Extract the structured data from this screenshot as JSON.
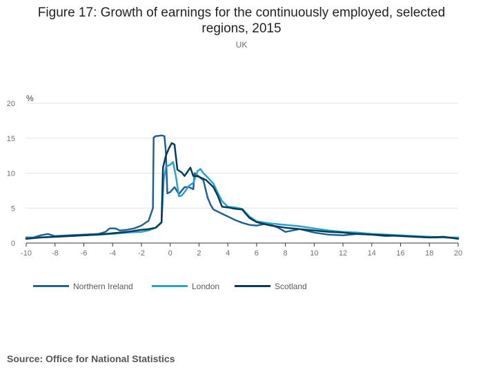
{
  "title_lines": [
    "Figure 17: Growth of earnings for the continuously employed, selected",
    "regions, 2015"
  ],
  "subtitle": "UK",
  "source": "Source: Office for National Statistics",
  "chart_data": {
    "type": "line",
    "title": "Figure 17: Growth of earnings for the continuously employed, selected regions, 2015",
    "subtitle": "UK",
    "xlabel": "",
    "ylabel": "%",
    "xlim": [
      -10,
      20
    ],
    "ylim": [
      0,
      20
    ],
    "x_ticks": [
      -10,
      -8,
      -6,
      -4,
      -2,
      0,
      2,
      4,
      6,
      8,
      10,
      12,
      14,
      16,
      18,
      20
    ],
    "y_ticks": [
      0,
      5,
      10,
      15,
      20
    ],
    "grid": true,
    "legend_position": "bottom-left",
    "series": [
      {
        "name": "Northern Ireland",
        "color": "#206095",
        "points": [
          [
            -10,
            0.8
          ],
          [
            -9.5,
            0.8
          ],
          [
            -9,
            1.1
          ],
          [
            -8.5,
            1.3
          ],
          [
            -8,
            1.0
          ],
          [
            -7,
            1.1
          ],
          [
            -6,
            1.2
          ],
          [
            -5,
            1.3
          ],
          [
            -4.5,
            1.6
          ],
          [
            -4.2,
            2.1
          ],
          [
            -3.8,
            2.1
          ],
          [
            -3.5,
            1.8
          ],
          [
            -3,
            1.9
          ],
          [
            -2.5,
            2.1
          ],
          [
            -2,
            2.5
          ],
          [
            -1.5,
            3.2
          ],
          [
            -1.2,
            5.0
          ],
          [
            -1.15,
            15.1
          ],
          [
            -1,
            15.3
          ],
          [
            -0.6,
            15.4
          ],
          [
            -0.4,
            15.3
          ],
          [
            -0.3,
            13.0
          ],
          [
            -0.2,
            7.1
          ],
          [
            0,
            7.3
          ],
          [
            0.3,
            8.0
          ],
          [
            0.6,
            7.0
          ],
          [
            1,
            8.0
          ],
          [
            1.3,
            8.0
          ],
          [
            1.6,
            7.7
          ],
          [
            1.7,
            10.0
          ],
          [
            2,
            9.5
          ],
          [
            2.3,
            9.0
          ],
          [
            2.6,
            6.5
          ],
          [
            2.8,
            5.5
          ],
          [
            3,
            4.8
          ],
          [
            3.5,
            4.3
          ],
          [
            4,
            3.8
          ],
          [
            4.5,
            3.3
          ],
          [
            5,
            2.9
          ],
          [
            5.5,
            2.6
          ],
          [
            6,
            2.5
          ],
          [
            6.5,
            2.7
          ],
          [
            7,
            2.6
          ],
          [
            7.5,
            2.2
          ],
          [
            8,
            1.6
          ],
          [
            9,
            2.0
          ],
          [
            10,
            1.5
          ],
          [
            11,
            1.2
          ],
          [
            12,
            1.1
          ],
          [
            13,
            1.3
          ],
          [
            14,
            1.2
          ],
          [
            15,
            1.0
          ],
          [
            16,
            1.1
          ],
          [
            17,
            0.9
          ],
          [
            18,
            0.8
          ],
          [
            19,
            0.8
          ],
          [
            20,
            0.7
          ]
        ]
      },
      {
        "name": "London",
        "color": "#27A0CC",
        "points": [
          [
            -10,
            0.7
          ],
          [
            -9,
            0.8
          ],
          [
            -8,
            0.9
          ],
          [
            -7,
            1.0
          ],
          [
            -6,
            1.1
          ],
          [
            -5,
            1.2
          ],
          [
            -4,
            1.3
          ],
          [
            -3,
            1.5
          ],
          [
            -2,
            1.6
          ],
          [
            -1.5,
            1.8
          ],
          [
            -1,
            2.2
          ],
          [
            -0.6,
            2.9
          ],
          [
            -0.45,
            9.0
          ],
          [
            -0.3,
            10.9
          ],
          [
            0,
            11.2
          ],
          [
            0.2,
            11.6
          ],
          [
            0.4,
            9.5
          ],
          [
            0.6,
            6.7
          ],
          [
            0.8,
            6.8
          ],
          [
            1,
            7.3
          ],
          [
            1.3,
            8.2
          ],
          [
            1.6,
            8.6
          ],
          [
            1.9,
            10.3
          ],
          [
            2.1,
            10.6
          ],
          [
            2.3,
            10.0
          ],
          [
            2.6,
            9.4
          ],
          [
            3,
            8.5
          ],
          [
            3.3,
            7.2
          ],
          [
            3.6,
            6.0
          ],
          [
            4,
            5.2
          ],
          [
            4.5,
            5.1
          ],
          [
            5,
            4.9
          ],
          [
            5.5,
            3.8
          ],
          [
            6,
            3.1
          ],
          [
            7,
            2.8
          ],
          [
            8,
            2.6
          ],
          [
            9,
            2.4
          ],
          [
            10,
            2.1
          ],
          [
            11,
            1.8
          ],
          [
            12,
            1.6
          ],
          [
            13,
            1.5
          ],
          [
            14,
            1.3
          ],
          [
            15,
            1.2
          ],
          [
            16,
            1.1
          ],
          [
            17,
            1.0
          ],
          [
            18,
            0.9
          ],
          [
            19,
            0.8
          ],
          [
            20,
            0.8
          ]
        ]
      },
      {
        "name": "Scotland",
        "color": "#003C57",
        "points": [
          [
            -10,
            0.6
          ],
          [
            -9,
            0.8
          ],
          [
            -8,
            0.9
          ],
          [
            -7,
            1.0
          ],
          [
            -6,
            1.1
          ],
          [
            -5,
            1.2
          ],
          [
            -4,
            1.4
          ],
          [
            -3,
            1.6
          ],
          [
            -2,
            1.9
          ],
          [
            -1.5,
            2.0
          ],
          [
            -1,
            2.2
          ],
          [
            -0.8,
            2.6
          ],
          [
            -0.6,
            3.0
          ],
          [
            -0.5,
            10.8
          ],
          [
            -0.3,
            12.5
          ],
          [
            -0.1,
            13.5
          ],
          [
            0.1,
            14.3
          ],
          [
            0.3,
            14.1
          ],
          [
            0.5,
            10.5
          ],
          [
            0.8,
            10.1
          ],
          [
            1,
            9.6
          ],
          [
            1.2,
            10.2
          ],
          [
            1.4,
            10.8
          ],
          [
            1.6,
            9.6
          ],
          [
            1.8,
            9.6
          ],
          [
            2,
            9.5
          ],
          [
            2.5,
            9.0
          ],
          [
            3,
            8.0
          ],
          [
            3.3,
            6.8
          ],
          [
            3.6,
            5.2
          ],
          [
            4,
            5.1
          ],
          [
            4.5,
            4.9
          ],
          [
            5,
            4.8
          ],
          [
            5.5,
            3.6
          ],
          [
            6,
            3.0
          ],
          [
            7,
            2.5
          ],
          [
            8,
            2.2
          ],
          [
            9,
            2.0
          ],
          [
            10,
            1.8
          ],
          [
            11,
            1.6
          ],
          [
            12,
            1.5
          ],
          [
            13,
            1.3
          ],
          [
            14,
            1.2
          ],
          [
            15,
            1.1
          ],
          [
            16,
            1.0
          ],
          [
            17,
            0.9
          ],
          [
            18,
            0.8
          ],
          [
            19,
            0.9
          ],
          [
            20,
            0.6
          ]
        ]
      }
    ]
  }
}
